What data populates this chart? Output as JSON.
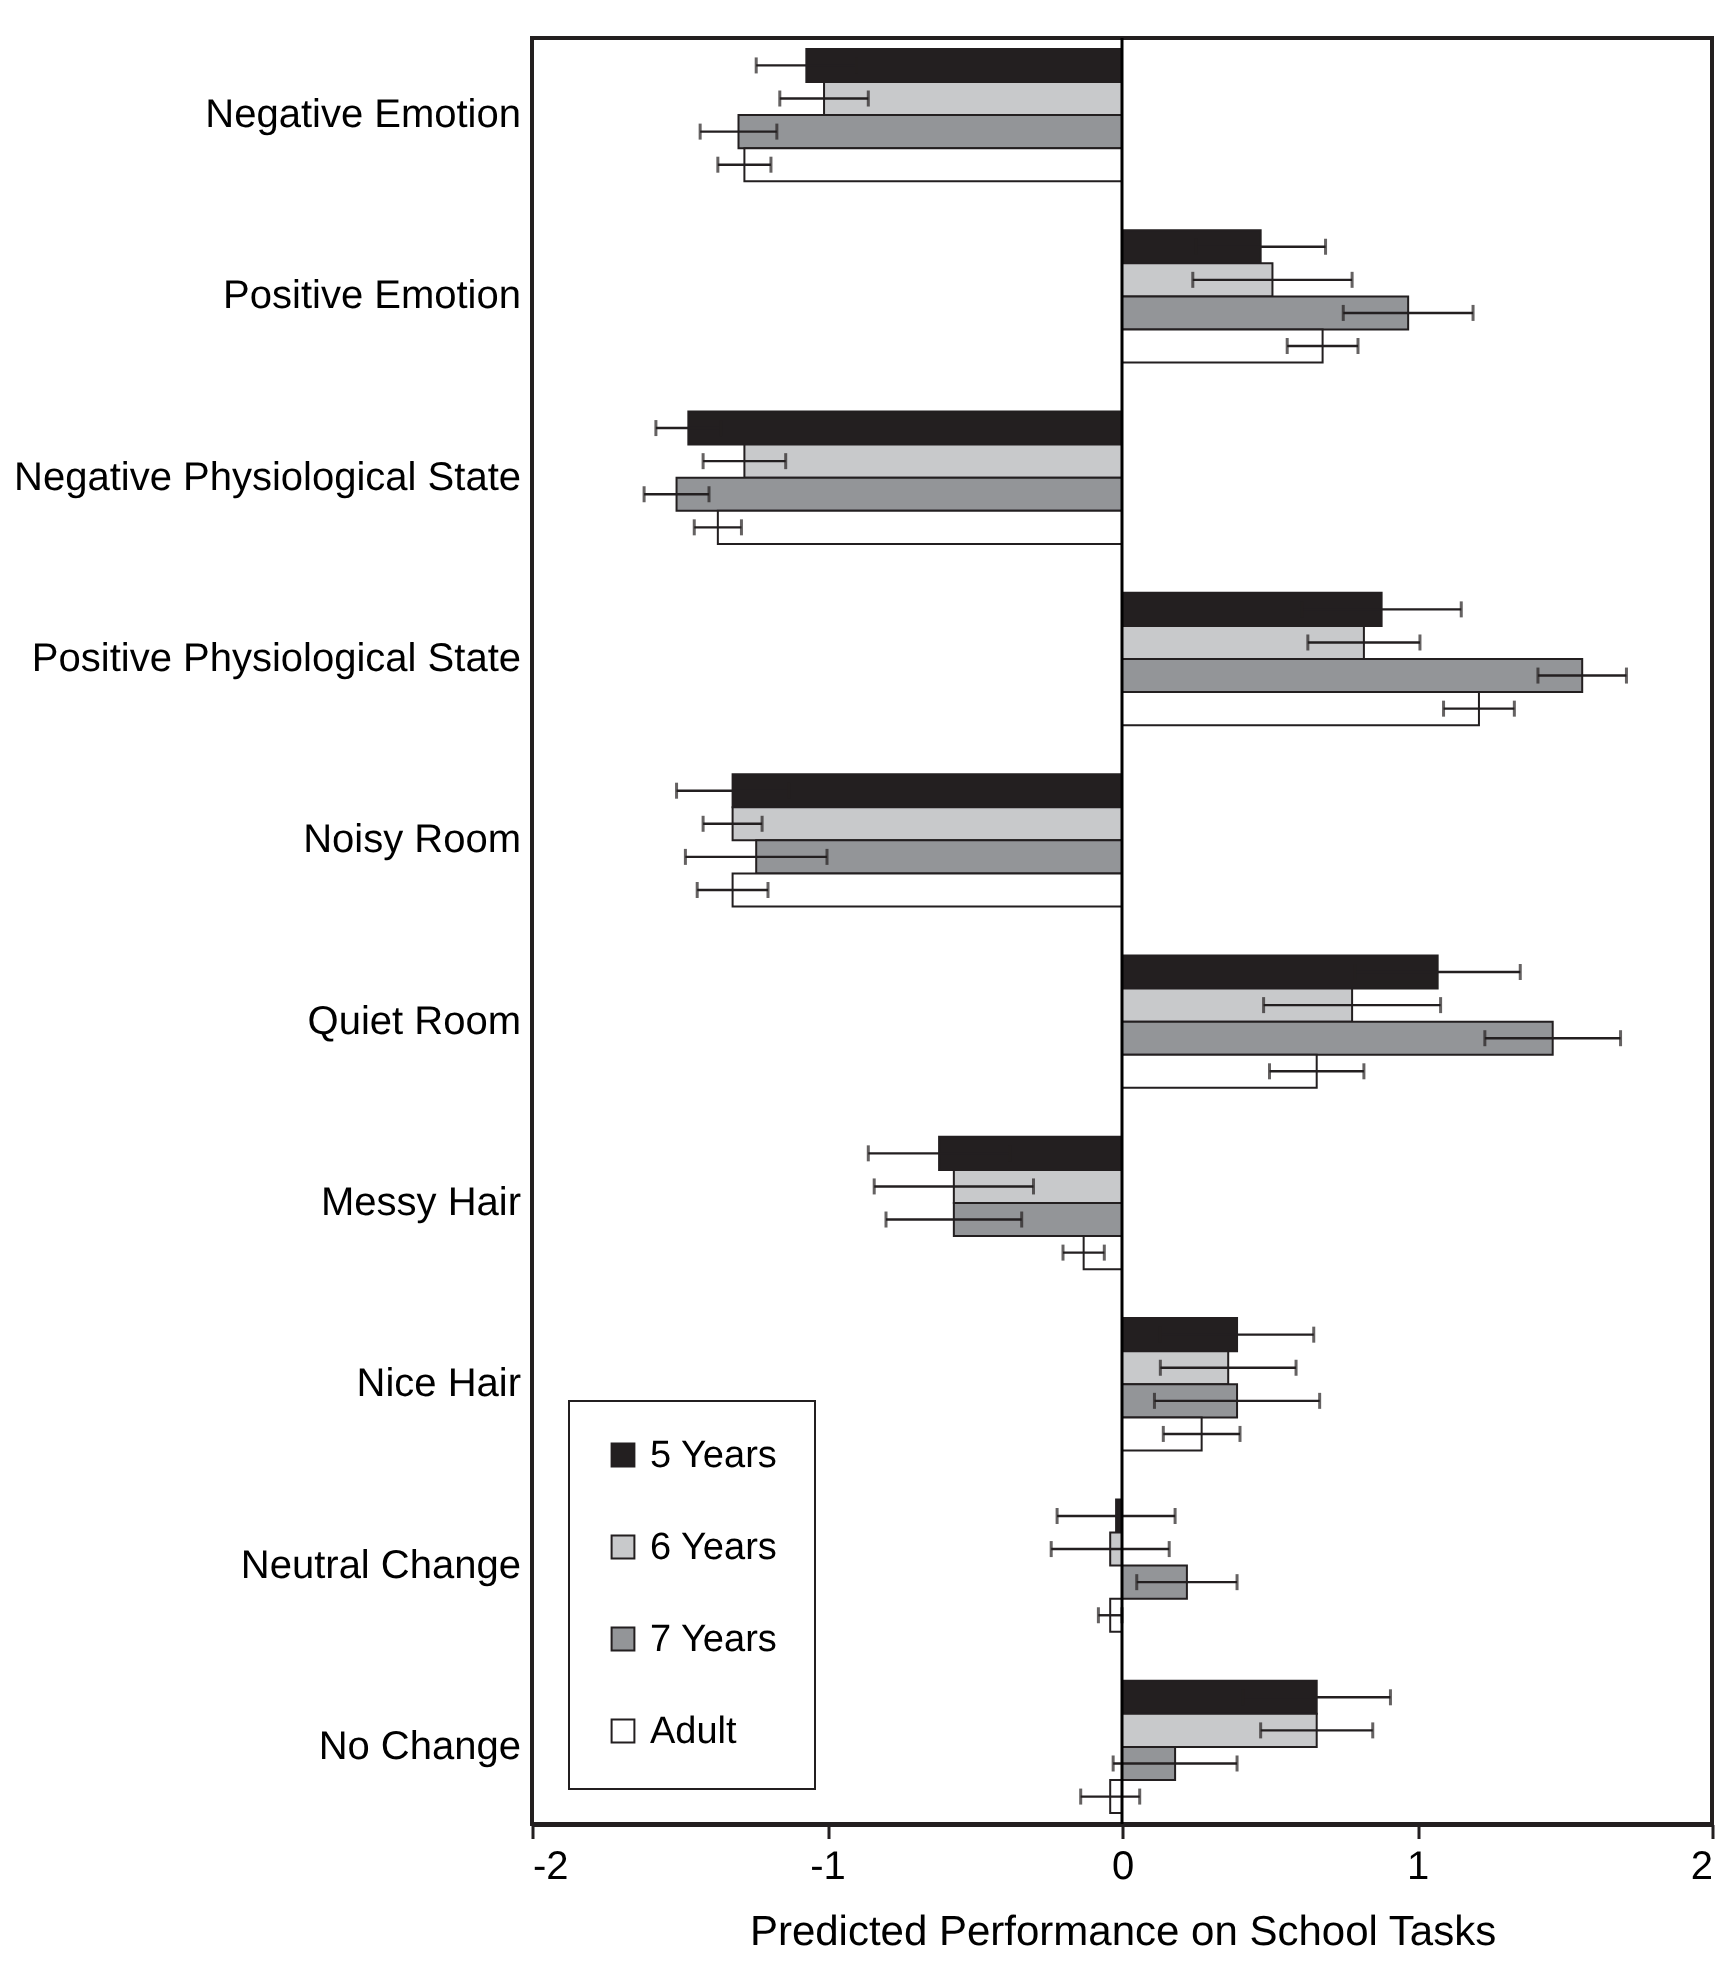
{
  "chart_data": {
    "type": "bar",
    "orientation": "horizontal",
    "xlabel": "Predicted Performance on School Tasks",
    "categories": [
      "Negative Emotion",
      "Positive Emotion",
      "Negative Physiological State",
      "Positive Physiological State",
      "Noisy Room",
      "Quiet Room",
      "Messy Hair",
      "Nice Hair",
      "Neutral Change",
      "No Change"
    ],
    "series": [
      {
        "name": "5 Years",
        "color": "#231f20",
        "values": [
          -1.07,
          0.47,
          -1.47,
          0.88,
          -1.32,
          1.07,
          -0.62,
          0.39,
          -0.02,
          0.66
        ],
        "errors": [
          0.17,
          0.22,
          0.11,
          0.27,
          0.19,
          0.28,
          0.24,
          0.26,
          0.2,
          0.25
        ]
      },
      {
        "name": "6 Years",
        "color": "#c8c9cb",
        "values": [
          -1.01,
          0.51,
          -1.28,
          0.82,
          -1.32,
          0.78,
          -0.57,
          0.36,
          -0.04,
          0.66
        ],
        "errors": [
          0.15,
          0.27,
          0.14,
          0.19,
          0.1,
          0.3,
          0.27,
          0.23,
          0.2,
          0.19
        ]
      },
      {
        "name": "7 Years",
        "color": "#939598",
        "values": [
          -1.3,
          0.97,
          -1.51,
          1.56,
          -1.24,
          1.46,
          -0.57,
          0.39,
          0.22,
          0.18
        ],
        "errors": [
          0.13,
          0.22,
          0.11,
          0.15,
          0.24,
          0.23,
          0.23,
          0.28,
          0.17,
          0.21
        ]
      },
      {
        "name": "Adult",
        "color": "#ffffff",
        "values": [
          -1.28,
          0.68,
          -1.37,
          1.21,
          -1.32,
          0.66,
          -0.13,
          0.27,
          -0.04,
          -0.04
        ],
        "errors": [
          0.09,
          0.12,
          0.08,
          0.12,
          0.12,
          0.16,
          0.07,
          0.13,
          0.04,
          0.1
        ]
      }
    ],
    "xlim": [
      -2,
      2
    ],
    "xticks": [
      -2,
      -1,
      0,
      1,
      2
    ],
    "ref_lines": [
      {
        "axis": "x",
        "value": 0,
        "color": "#000000"
      }
    ],
    "grid": false,
    "legend": "bottom left"
  }
}
